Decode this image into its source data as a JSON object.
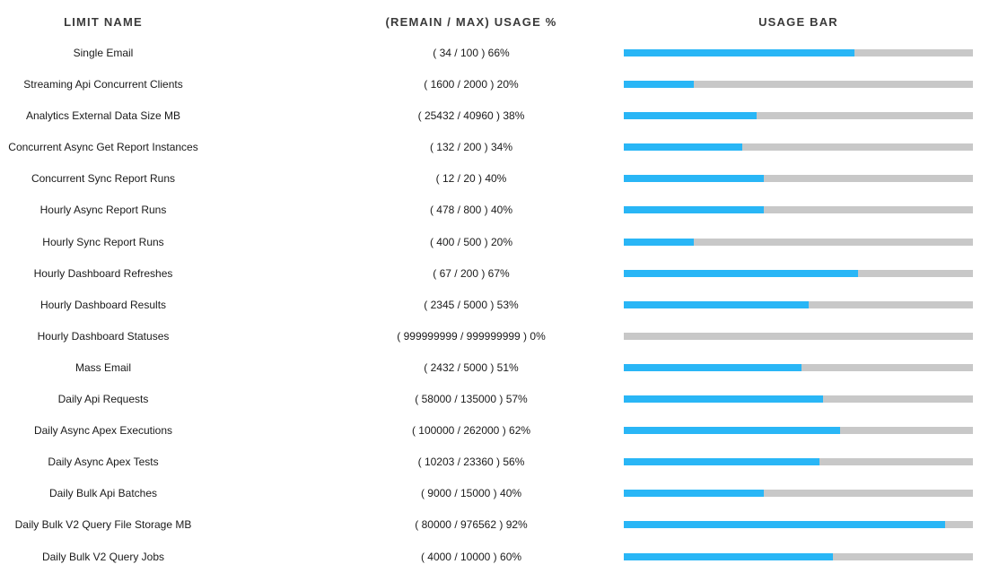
{
  "header": {
    "limit_name": "LIMIT NAME",
    "usage": "(REMAIN / MAX) USAGE %",
    "usage_bar": "USAGE BAR"
  },
  "colors": {
    "fill": "#29b6f6",
    "track": "#c8c8c8"
  },
  "rows": [
    {
      "name": "Single Email",
      "usage_text": "( 34 / 100 ) 66%",
      "fraction": 0.66
    },
    {
      "name": "Streaming Api Concurrent Clients",
      "usage_text": "( 1600 / 2000 ) 20%",
      "fraction": 0.2
    },
    {
      "name": "Analytics External Data Size MB",
      "usage_text": "( 25432 / 40960 ) 38%",
      "fraction": 0.38
    },
    {
      "name": "Concurrent Async Get Report Instances",
      "usage_text": "( 132 / 200 ) 34%",
      "fraction": 0.34
    },
    {
      "name": "Concurrent Sync Report Runs",
      "usage_text": "( 12 / 20 ) 40%",
      "fraction": 0.4
    },
    {
      "name": "Hourly Async Report Runs",
      "usage_text": "( 478 / 800 ) 40%",
      "fraction": 0.4
    },
    {
      "name": "Hourly Sync Report Runs",
      "usage_text": "( 400 / 500 ) 20%",
      "fraction": 0.2
    },
    {
      "name": "Hourly Dashboard Refreshes",
      "usage_text": "( 67 / 200 ) 67%",
      "fraction": 0.67
    },
    {
      "name": "Hourly Dashboard Results",
      "usage_text": "( 2345 / 5000 ) 53%",
      "fraction": 0.53
    },
    {
      "name": "Hourly Dashboard Statuses",
      "usage_text": "( 999999999 / 999999999 ) 0%",
      "fraction": 0.0
    },
    {
      "name": "Mass Email",
      "usage_text": "( 2432 / 5000 ) 51%",
      "fraction": 0.51
    },
    {
      "name": "Daily Api Requests",
      "usage_text": "( 58000 / 135000 ) 57%",
      "fraction": 0.57
    },
    {
      "name": "Daily Async Apex Executions",
      "usage_text": "( 100000 / 262000 ) 62%",
      "fraction": 0.62
    },
    {
      "name": "Daily Async Apex Tests",
      "usage_text": "( 10203 / 23360 ) 56%",
      "fraction": 0.56
    },
    {
      "name": "Daily Bulk Api Batches",
      "usage_text": "( 9000 / 15000 ) 40%",
      "fraction": 0.4
    },
    {
      "name": "Daily Bulk V2 Query File Storage MB",
      "usage_text": "( 80000 / 976562 ) 92%",
      "fraction": 0.92
    },
    {
      "name": "Daily Bulk V2 Query Jobs",
      "usage_text": "( 4000 / 10000 ) 60%",
      "fraction": 0.6
    }
  ]
}
